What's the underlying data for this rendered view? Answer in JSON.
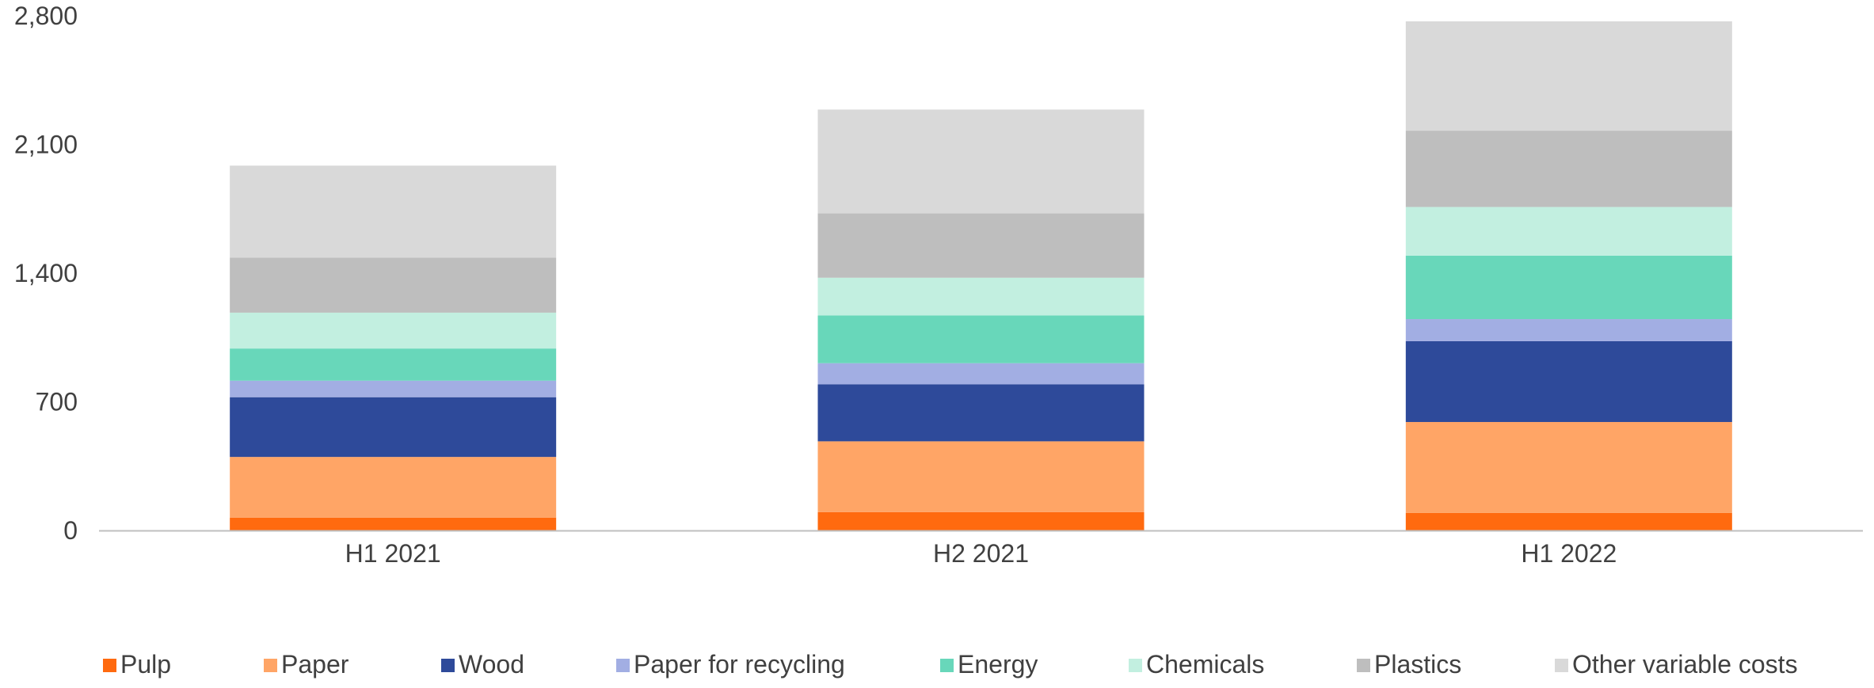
{
  "chart_data": {
    "type": "bar",
    "stacked": true,
    "categories": [
      "H1 2021",
      "H2 2021",
      "H1 2022"
    ],
    "series": [
      {
        "name": "Pulp",
        "color": "#FF6A0F",
        "values": [
          70,
          100,
          95
        ]
      },
      {
        "name": "Paper",
        "color": "#FFA566",
        "values": [
          330,
          385,
          495
        ]
      },
      {
        "name": "Wood",
        "color": "#2E4A9A",
        "values": [
          325,
          310,
          440
        ]
      },
      {
        "name": "Paper for recycling",
        "color": "#A2AEE3",
        "values": [
          90,
          115,
          120
        ]
      },
      {
        "name": "Energy",
        "color": "#68D7BA",
        "values": [
          175,
          260,
          345
        ]
      },
      {
        "name": "Chemicals",
        "color": "#C2EFE0",
        "values": [
          195,
          205,
          265
        ]
      },
      {
        "name": "Plastics",
        "color": "#BEBEBE",
        "values": [
          300,
          350,
          415
        ]
      },
      {
        "name": "Other variable costs",
        "color": "#D9D9D9",
        "values": [
          500,
          565,
          595
        ]
      }
    ],
    "y_ticks": [
      "0",
      "700",
      "1,400",
      "2,100",
      "2,800"
    ],
    "y_tick_values": [
      0,
      700,
      1400,
      2100,
      2800
    ],
    "ylim": [
      0,
      2800
    ],
    "xlabel": "",
    "ylabel": "",
    "title": "",
    "grid": false,
    "legend_position": "bottom",
    "axis_color": "#BFBFBF"
  }
}
